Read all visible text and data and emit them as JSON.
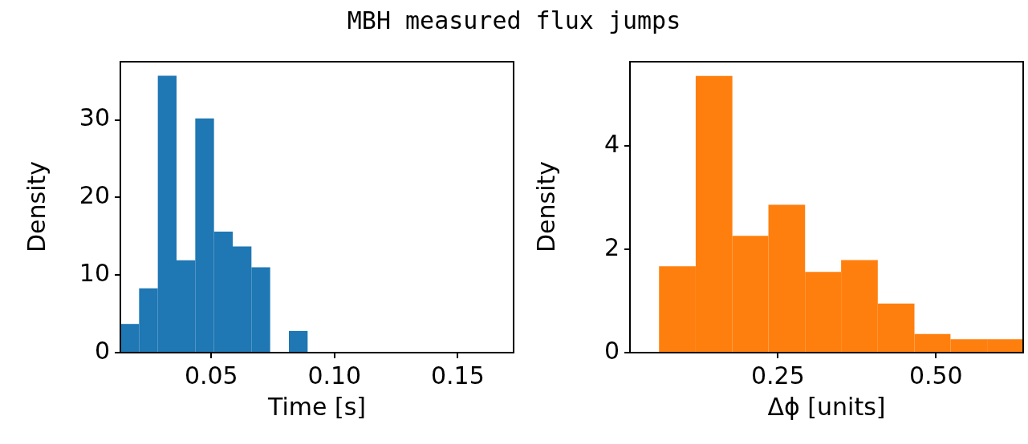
{
  "chart_data": [
    {
      "type": "histogram",
      "title": "MBH measured flux jumps",
      "xlabel": "Time [s]",
      "ylabel": "Density",
      "color": "#1f77b4",
      "bins": [
        0.0131,
        0.0207,
        0.0283,
        0.0359,
        0.0435,
        0.0511,
        0.0587,
        0.0663,
        0.0739,
        0.0815,
        0.0891,
        0.0967,
        0.1043,
        0.1119,
        0.1195,
        0.1271,
        0.1347,
        0.1423,
        0.1499,
        0.1575,
        0.1651,
        0.1727
      ],
      "values": [
        3.7,
        8.3,
        35.7,
        11.9,
        30.2,
        15.6,
        13.7,
        11.0,
        0,
        2.8,
        0,
        0,
        0,
        0,
        0,
        0,
        0,
        0,
        0,
        0,
        0
      ],
      "xlim": [
        0.0131,
        0.1727
      ],
      "ylim": [
        0,
        37.5
      ],
      "xticks": [
        {
          "value": 0.05,
          "label": "0.05"
        },
        {
          "value": 0.1,
          "label": "0.10"
        },
        {
          "value": 0.15,
          "label": "0.15"
        }
      ],
      "yticks": [
        0,
        10,
        20,
        30
      ]
    },
    {
      "type": "histogram",
      "xlabel": "Δϕ [units]",
      "ylabel": "Density",
      "color": "#ff7f0e",
      "bins": [
        0.062,
        0.12,
        0.178,
        0.235,
        0.293,
        0.35,
        0.408,
        0.466,
        0.523,
        0.581,
        0.638
      ],
      "values": [
        1.67,
        5.35,
        2.26,
        2.86,
        1.56,
        1.79,
        0.95,
        0.36,
        0.26,
        0.26
      ],
      "xlim": [
        0.016,
        0.638
      ],
      "ylim": [
        0,
        5.625
      ],
      "xticks": [
        {
          "value": 0.25,
          "label": "0.25"
        },
        {
          "value": 0.5,
          "label": "0.50"
        }
      ],
      "yticks": [
        0,
        2,
        4
      ]
    }
  ]
}
